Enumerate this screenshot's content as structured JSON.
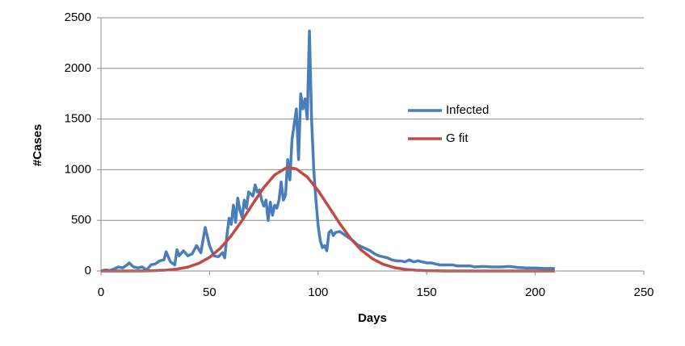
{
  "chart_data": {
    "type": "line",
    "x_label": "Days",
    "y_label": "#Cases",
    "xlim": [
      0,
      250
    ],
    "xticks": [
      0,
      50,
      100,
      150,
      200,
      250
    ],
    "ylim": [
      0,
      2500
    ],
    "yticks": [
      0,
      500,
      1000,
      1500,
      2000,
      2500
    ],
    "grid": true,
    "legend": "right",
    "series": [
      {
        "name": "Infected",
        "color": "#4a7ebb",
        "x": [
          0,
          2,
          4,
          6,
          8,
          10,
          12,
          13,
          15,
          17,
          19,
          21,
          23,
          25,
          27,
          29,
          30,
          32,
          34,
          35,
          36,
          38,
          40,
          42,
          44,
          46,
          48,
          50,
          52,
          54,
          56,
          57,
          58,
          59,
          60,
          61,
          62,
          63,
          64,
          65,
          66,
          67,
          68,
          69,
          70,
          71,
          72,
          73,
          74,
          75,
          76,
          77,
          78,
          79,
          80,
          81,
          82,
          83,
          84,
          85,
          86,
          87,
          88,
          89,
          90,
          91,
          92,
          93,
          94,
          95,
          96,
          97,
          98,
          99,
          100,
          101,
          102,
          103,
          104,
          105,
          106,
          107,
          108,
          110,
          112,
          114,
          116,
          118,
          120,
          122,
          124,
          126,
          128,
          130,
          132,
          134,
          136,
          138,
          140,
          142,
          144,
          146,
          148,
          150,
          152,
          154,
          156,
          158,
          160,
          162,
          164,
          166,
          168,
          170,
          172,
          176,
          180,
          184,
          188,
          192,
          196,
          200,
          204,
          209
        ],
        "values": [
          0,
          10,
          5,
          20,
          40,
          30,
          60,
          80,
          40,
          30,
          40,
          10,
          60,
          70,
          100,
          110,
          190,
          90,
          60,
          210,
          150,
          200,
          150,
          170,
          250,
          180,
          430,
          250,
          150,
          140,
          180,
          130,
          350,
          520,
          460,
          650,
          480,
          720,
          600,
          530,
          700,
          620,
          780,
          760,
          740,
          850,
          780,
          800,
          700,
          640,
          700,
          500,
          680,
          550,
          650,
          620,
          700,
          880,
          700,
          750,
          1100,
          900,
          1300,
          1450,
          1600,
          1100,
          1750,
          1600,
          1700,
          1500,
          2370,
          1500,
          1000,
          700,
          450,
          300,
          230,
          250,
          200,
          380,
          400,
          350,
          380,
          390,
          360,
          330,
          300,
          260,
          240,
          220,
          200,
          170,
          150,
          140,
          130,
          110,
          100,
          100,
          90,
          110,
          90,
          100,
          90,
          80,
          80,
          70,
          60,
          60,
          60,
          60,
          50,
          50,
          50,
          50,
          40,
          45,
          40,
          40,
          45,
          35,
          30,
          30,
          25,
          25
        ]
      },
      {
        "name": "G fit",
        "color": "#be4b48",
        "x": [
          0,
          10,
          20,
          25,
          30,
          35,
          40,
          45,
          50,
          55,
          60,
          65,
          70,
          75,
          80,
          85,
          87,
          90,
          95,
          100,
          105,
          110,
          115,
          120,
          125,
          130,
          135,
          140,
          145,
          150,
          160,
          170,
          180,
          190,
          200,
          209
        ],
        "values": [
          0,
          0,
          1.3,
          3.5,
          8.4,
          19,
          39,
          75,
          135,
          225,
          348,
          499,
          666,
          824,
          949,
          1014,
          1020,
          1007,
          928,
          794,
          632,
          467,
          320,
          204,
          121,
          66,
          34,
          16,
          7,
          3,
          0,
          0,
          0,
          0,
          0,
          0
        ]
      }
    ]
  }
}
